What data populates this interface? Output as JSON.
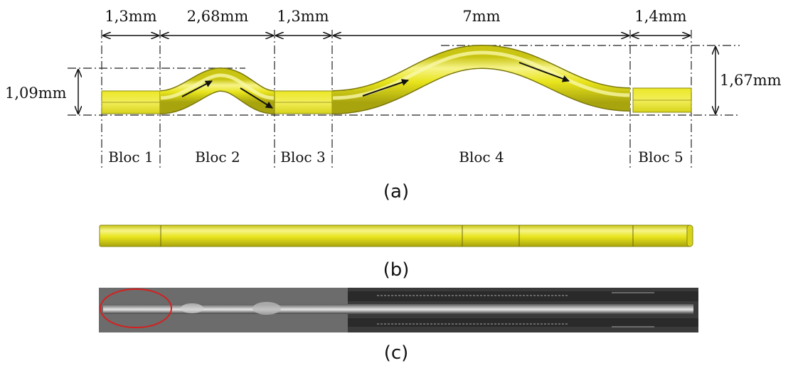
{
  "dimensions": {
    "bloc1_width": "1,3mm",
    "bloc2_width": "2,68mm",
    "bloc3_width": "1,3mm",
    "bloc4_width": "7mm",
    "bloc5_width": "1,4mm",
    "left_height": "1,09mm",
    "right_height": "1,67mm"
  },
  "blocs": [
    "Bloc 1",
    "Bloc 2",
    "Bloc 3",
    "Bloc 4",
    "Bloc 5"
  ],
  "panels": {
    "a": "(a)",
    "b": "(b)",
    "c": "(c)"
  },
  "colors": {
    "tube": "#e6e21a",
    "tube_light": "#f6f37a",
    "tube_dark": "#9e9b10",
    "photo_background": "#2a2a2a",
    "defect_marker": "#d42020"
  }
}
